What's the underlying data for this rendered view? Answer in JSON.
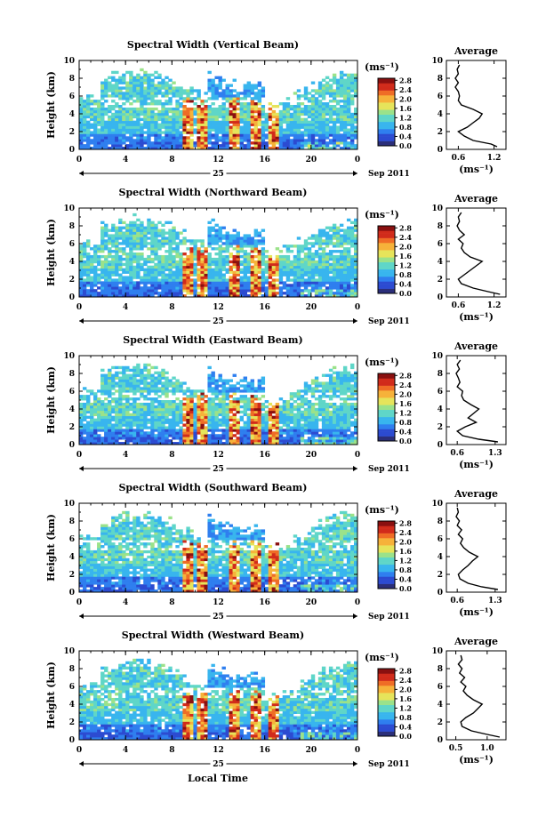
{
  "global": {
    "time_axis_label": "Local Time",
    "date_day": "25",
    "date_suffix": "Sep 2011",
    "colorbar_unit": "(ms⁻¹)",
    "avg_title": "Average",
    "avg_xlabel": "(ms⁻¹)",
    "ylabel": "Height (km)",
    "colorscale": [
      "#2b2f7a",
      "#2c4bd1",
      "#2f7fef",
      "#38b5ee",
      "#5fd6c8",
      "#9be28a",
      "#e6e45a",
      "#f6b23a",
      "#ef6d26",
      "#d12b1b",
      "#8a1010"
    ]
  },
  "chart_data": [
    {
      "type": "heatmap",
      "title": "Spectral Width (Vertical Beam)",
      "x_ticks": [
        "0",
        "4",
        "8",
        "12",
        "16",
        "20",
        "0"
      ],
      "y_ticks": [
        "0",
        "2",
        "4",
        "6",
        "8",
        "10"
      ],
      "xlim": [
        0,
        24
      ],
      "ylim": [
        0,
        10
      ],
      "colorbar_ticks": [
        "0.0",
        "0.4",
        "0.8",
        "1.2",
        "1.6",
        "2.0",
        "2.4",
        "2.8"
      ],
      "avg_profile": {
        "xticks": [
          "0.6",
          "1.2"
        ],
        "xlim": [
          0.4,
          1.4
        ],
        "yticks": [
          "0",
          "2",
          "4",
          "6",
          "8",
          "10"
        ],
        "height": [
          0.3,
          0.6,
          1.0,
          1.5,
          2.0,
          2.5,
          3.0,
          3.5,
          4.0,
          4.5,
          5.0,
          5.5,
          6.0,
          6.5,
          7.0,
          7.5,
          8.0,
          8.5,
          9.0,
          9.5
        ],
        "value": [
          1.25,
          1.15,
          0.85,
          0.7,
          0.6,
          0.75,
          0.85,
          0.95,
          1.0,
          0.85,
          0.65,
          0.6,
          0.62,
          0.6,
          0.55,
          0.6,
          0.55,
          0.6,
          0.58,
          0.62
        ]
      }
    },
    {
      "type": "heatmap",
      "title": "Spectral Width (Northward Beam)",
      "x_ticks": [
        "0",
        "4",
        "8",
        "12",
        "16",
        "20",
        "0"
      ],
      "y_ticks": [
        "0",
        "2",
        "4",
        "6",
        "8",
        "10"
      ],
      "xlim": [
        0,
        24
      ],
      "ylim": [
        0,
        10
      ],
      "colorbar_ticks": [
        "0.0",
        "0.4",
        "0.8",
        "1.2",
        "1.6",
        "2.0",
        "2.4",
        "2.8"
      ],
      "avg_profile": {
        "xticks": [
          "0.6",
          "1.2"
        ],
        "xlim": [
          0.4,
          1.4
        ],
        "yticks": [
          "0",
          "2",
          "4",
          "6",
          "8",
          "10"
        ],
        "height": [
          0.3,
          0.6,
          1.0,
          1.5,
          2.0,
          2.5,
          3.0,
          3.5,
          4.0,
          4.5,
          5.0,
          5.5,
          6.0,
          6.5,
          7.0,
          7.5,
          8.0,
          8.5,
          9.0,
          9.5
        ],
        "value": [
          1.3,
          1.1,
          0.85,
          0.65,
          0.6,
          0.7,
          0.8,
          0.9,
          1.0,
          0.8,
          0.7,
          0.65,
          0.68,
          0.6,
          0.7,
          0.62,
          0.58,
          0.62,
          0.6,
          0.65
        ]
      }
    },
    {
      "type": "heatmap",
      "title": "Spectral Width (Eastward Beam)",
      "x_ticks": [
        "0",
        "4",
        "8",
        "12",
        "16",
        "20",
        "0"
      ],
      "y_ticks": [
        "0",
        "2",
        "4",
        "6",
        "8",
        "10"
      ],
      "xlim": [
        0,
        24
      ],
      "ylim": [
        0,
        10
      ],
      "colorbar_ticks": [
        "0.0",
        "0.4",
        "0.8",
        "1.2",
        "1.6",
        "2.0",
        "2.4",
        "2.8"
      ],
      "avg_profile": {
        "xticks": [
          "0.6",
          "1.3"
        ],
        "xlim": [
          0.4,
          1.5
        ],
        "yticks": [
          "0",
          "2",
          "4",
          "6",
          "8",
          "10"
        ],
        "height": [
          0.3,
          0.6,
          1.0,
          1.5,
          2.0,
          2.5,
          3.0,
          3.5,
          4.0,
          4.5,
          5.0,
          5.5,
          6.0,
          6.5,
          7.0,
          7.5,
          8.0,
          8.5,
          9.0,
          9.5
        ],
        "value": [
          1.35,
          1.0,
          0.7,
          0.6,
          0.75,
          0.95,
          0.8,
          0.9,
          1.0,
          0.85,
          0.72,
          0.68,
          0.7,
          0.6,
          0.65,
          0.62,
          0.58,
          0.64,
          0.6,
          0.66
        ]
      }
    },
    {
      "type": "heatmap",
      "title": "Spectral Width (Southward Beam)",
      "x_ticks": [
        "0",
        "4",
        "8",
        "12",
        "16",
        "20",
        "0"
      ],
      "y_ticks": [
        "0",
        "2",
        "4",
        "6",
        "8",
        "10"
      ],
      "xlim": [
        0,
        24
      ],
      "ylim": [
        0,
        10
      ],
      "colorbar_ticks": [
        "0.0",
        "0.4",
        "0.8",
        "1.2",
        "1.6",
        "2.0",
        "2.4",
        "2.8"
      ],
      "avg_profile": {
        "xticks": [
          "0.6",
          "1.3"
        ],
        "xlim": [
          0.4,
          1.5
        ],
        "yticks": [
          "0",
          "2",
          "4",
          "6",
          "8",
          "10"
        ],
        "height": [
          0.3,
          0.6,
          1.0,
          1.5,
          2.0,
          2.5,
          3.0,
          3.5,
          4.0,
          4.5,
          5.0,
          5.5,
          6.0,
          6.5,
          7.0,
          7.5,
          8.0,
          8.5,
          9.0,
          9.5
        ],
        "value": [
          1.35,
          1.05,
          0.8,
          0.65,
          0.62,
          0.7,
          0.8,
          0.88,
          0.98,
          0.82,
          0.72,
          0.66,
          0.7,
          0.62,
          0.68,
          0.6,
          0.64,
          0.58,
          0.62,
          0.6
        ]
      }
    },
    {
      "type": "heatmap",
      "title": "Spectral Width (Westward Beam)",
      "x_ticks": [
        "0",
        "4",
        "8",
        "12",
        "16",
        "20",
        "0"
      ],
      "y_ticks": [
        "0",
        "2",
        "4",
        "6",
        "8",
        "10"
      ],
      "xlim": [
        0,
        24
      ],
      "ylim": [
        0,
        10
      ],
      "colorbar_ticks": [
        "0.0",
        "0.4",
        "0.8",
        "1.2",
        "1.6",
        "2.0",
        "2.4",
        "2.8"
      ],
      "avg_profile": {
        "xticks": [
          "0.5",
          "1.0"
        ],
        "xlim": [
          0.35,
          1.3
        ],
        "yticks": [
          "0",
          "2",
          "4",
          "6",
          "8",
          "10"
        ],
        "height": [
          0.3,
          0.6,
          1.0,
          1.5,
          2.0,
          2.5,
          3.0,
          3.5,
          4.0,
          4.5,
          5.0,
          5.5,
          6.0,
          6.5,
          7.0,
          7.5,
          8.0,
          8.5,
          9.0,
          9.5
        ],
        "value": [
          1.2,
          1.0,
          0.75,
          0.6,
          0.58,
          0.66,
          0.78,
          0.85,
          0.92,
          0.78,
          0.68,
          0.62,
          0.66,
          0.58,
          0.64,
          0.56,
          0.6,
          0.54,
          0.6,
          0.58
        ]
      }
    }
  ]
}
